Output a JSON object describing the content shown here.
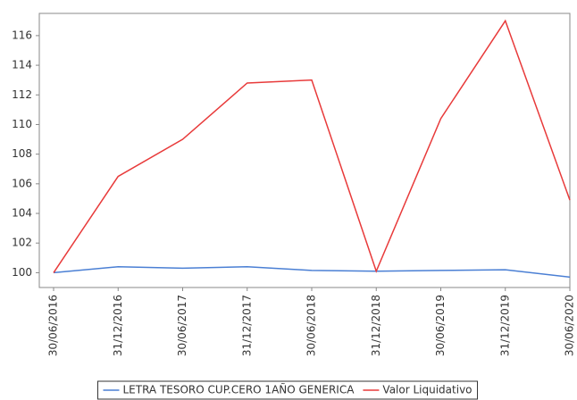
{
  "chart_data": {
    "type": "line",
    "categories": [
      "30/06/2016",
      "31/12/2016",
      "30/06/2017",
      "31/12/2017",
      "30/06/2018",
      "31/12/2018",
      "30/06/2019",
      "31/12/2019",
      "30/06/2020"
    ],
    "series": [
      {
        "name": "LETRA TESORO CUP.CERO 1AÑO GENERICA",
        "color": "#4a7fd4",
        "values": [
          100,
          100.4,
          100.3,
          100.4,
          100.15,
          100.1,
          100.15,
          100.2,
          99.7
        ]
      },
      {
        "name": "Valor Liquidativo",
        "color": "#e83a3a",
        "values": [
          100,
          106.5,
          109,
          112.8,
          113,
          100.1,
          110.4,
          117,
          104.9
        ]
      }
    ],
    "ylim": [
      99,
      117.5
    ],
    "yticks": [
      100,
      102,
      104,
      106,
      108,
      110,
      112,
      114,
      116
    ],
    "grid": false,
    "legend": "bottom"
  }
}
